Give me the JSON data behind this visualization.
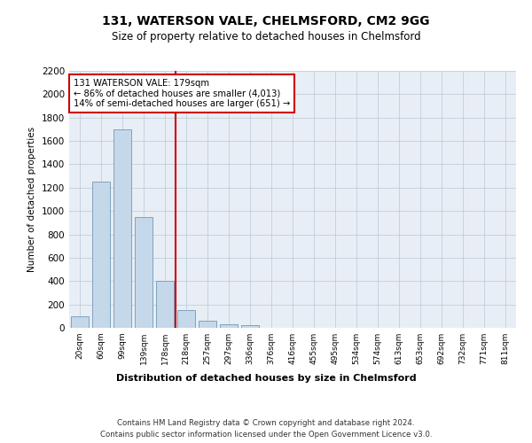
{
  "title1": "131, WATERSON VALE, CHELMSFORD, CM2 9GG",
  "title2": "Size of property relative to detached houses in Chelmsford",
  "xlabel": "Distribution of detached houses by size in Chelmsford",
  "ylabel": "Number of detached properties",
  "bar_labels": [
    "20sqm",
    "60sqm",
    "99sqm",
    "139sqm",
    "178sqm",
    "218sqm",
    "257sqm",
    "297sqm",
    "336sqm",
    "376sqm",
    "416sqm",
    "455sqm",
    "495sqm",
    "534sqm",
    "574sqm",
    "613sqm",
    "653sqm",
    "692sqm",
    "732sqm",
    "771sqm",
    "811sqm"
  ],
  "bar_values": [
    100,
    1250,
    1700,
    950,
    400,
    150,
    60,
    30,
    20,
    0,
    0,
    0,
    0,
    0,
    0,
    0,
    0,
    0,
    0,
    0,
    0
  ],
  "bar_color": "#c5d8ea",
  "bar_edge_color": "#7099b8",
  "vline_x": 4.5,
  "vline_color": "#cc0000",
  "annotation_text": "131 WATERSON VALE: 179sqm\n← 86% of detached houses are smaller (4,013)\n14% of semi-detached houses are larger (651) →",
  "annotation_box_color": "#ffffff",
  "annotation_box_edge": "#cc0000",
  "ylim": [
    0,
    2200
  ],
  "yticks": [
    0,
    200,
    400,
    600,
    800,
    1000,
    1200,
    1400,
    1600,
    1800,
    2000,
    2200
  ],
  "footer1": "Contains HM Land Registry data © Crown copyright and database right 2024.",
  "footer2": "Contains public sector information licensed under the Open Government Licence v3.0.",
  "bg_color": "#ffffff",
  "plot_bg_color": "#e8eef5"
}
